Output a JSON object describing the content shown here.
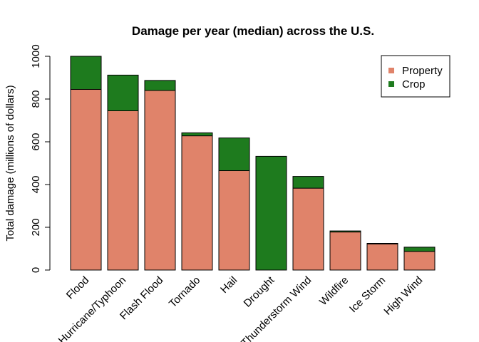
{
  "chart_data": {
    "type": "bar",
    "stacked": true,
    "title": "Damage per year (median) across the U.S.",
    "xlabel": "",
    "ylabel": "Total damage (millions of dollars)",
    "ylim": [
      0,
      1000
    ],
    "yticks": [
      0,
      200,
      400,
      600,
      800,
      1000
    ],
    "categories": [
      "Flood",
      "Hurricane/Typhoon",
      "Flash Flood",
      "Tornado",
      "Hail",
      "Drought",
      "Thunderstorm Wind",
      "Wildfire",
      "Ice Storm",
      "High Wind"
    ],
    "series": [
      {
        "name": "Property",
        "color": "#E0836A",
        "values": [
          845,
          745,
          840,
          628,
          465,
          0,
          383,
          178,
          122,
          87
        ]
      },
      {
        "name": "Crop",
        "color": "#1E7B1E",
        "values": [
          155,
          167,
          47,
          14,
          153,
          532,
          55,
          5,
          3,
          20
        ]
      }
    ],
    "legend": {
      "position": "top-right"
    },
    "grid": false
  }
}
